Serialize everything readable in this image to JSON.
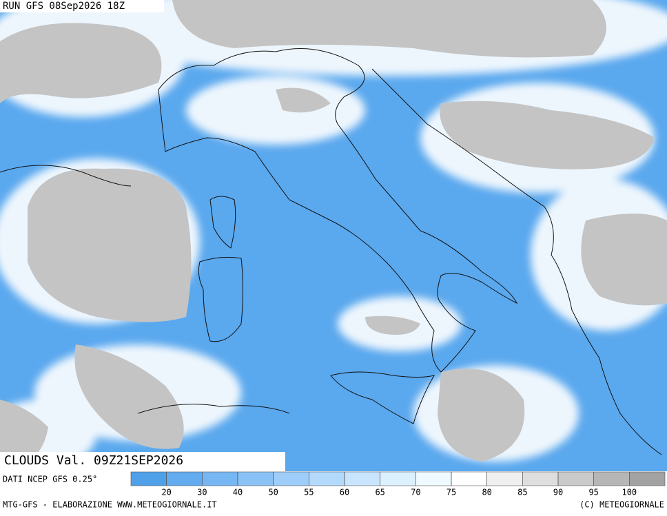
{
  "header": {
    "run": "RUN GFS 08Sep2026 18Z",
    "field": "CLOUDS Val. 09Z21SEP2026",
    "source": "DATI NCEP GFS 0.25°"
  },
  "legend": {
    "ticks": [
      20,
      30,
      40,
      50,
      55,
      60,
      65,
      70,
      75,
      80,
      85,
      90,
      95,
      100
    ],
    "colors": [
      "#4ea0e8",
      "#62abee",
      "#76b7f3",
      "#8ac2f6",
      "#9ecdf9",
      "#b3d9fb",
      "#c8e5fd",
      "#dcf1fe",
      "#eefaff",
      "#ffffff",
      "#f0f0f0",
      "#dedede",
      "#cacaca",
      "#b6b6b6",
      "#a2a2a2"
    ]
  },
  "footer": {
    "left": "MTG-GFS - ELABORAZIONE WWW.METEOGIORNALE.IT",
    "right": "(C) METEOGIORNALE"
  }
}
